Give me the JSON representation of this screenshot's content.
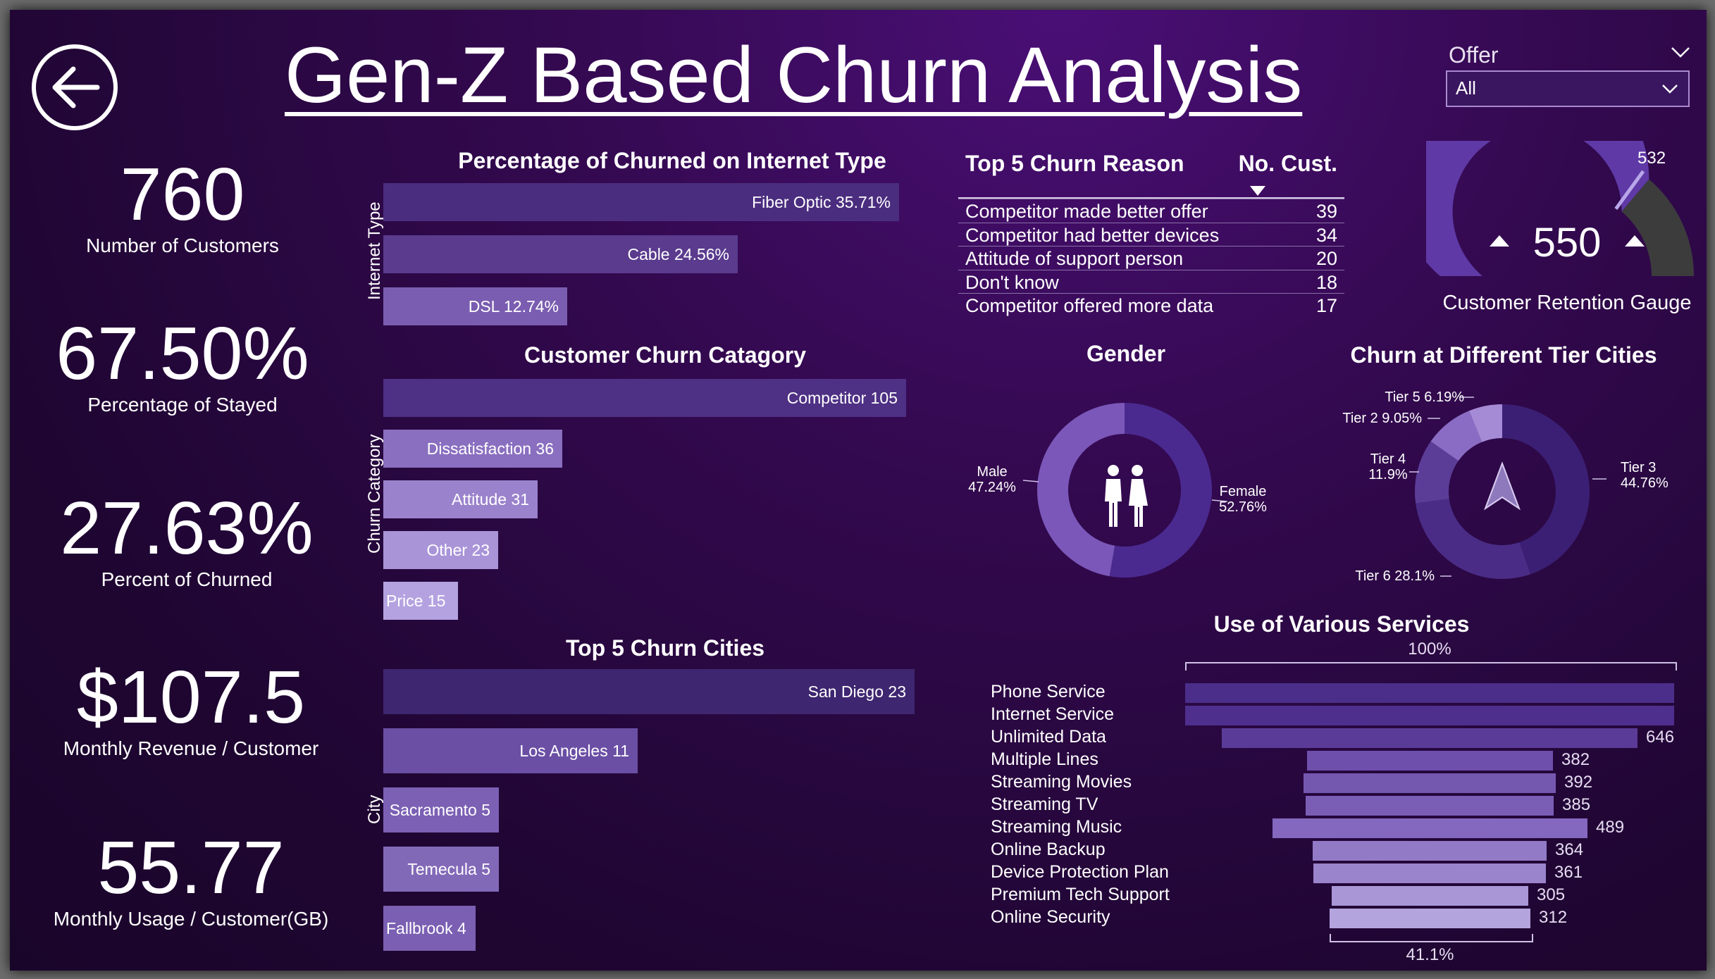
{
  "header": {
    "title": "Gen-Z Based Churn Analysis",
    "back_icon": "arrow-left-circle-icon",
    "slicer": {
      "label": "Offer",
      "value": "All"
    }
  },
  "colors": {
    "background": "#2a0744",
    "bar_dark": "#4b2d7f",
    "bar_mid": "#6b4a9e",
    "bar_light": "#9a82c4",
    "gauge_fill": "#5f39a6",
    "gauge_rest": "#3c3c3c"
  },
  "kpis": [
    {
      "value": "760",
      "label": "Number of Customers"
    },
    {
      "value": "67.50%",
      "label": "Percentage of Stayed"
    },
    {
      "value": "27.63%",
      "label": "Percent of Churned"
    },
    {
      "value": "$107.5",
      "label": "Monthly Revenue / Customer"
    },
    {
      "value": "55.77",
      "label": "Monthly Usage / Customer(GB)"
    }
  ],
  "chart_data": [
    {
      "type": "bar",
      "orientation": "horizontal",
      "title": "Percentage of Churned on Internet Type",
      "ylabel": "Internet Type",
      "categories": [
        "Fiber Optic",
        "Cable",
        "DSL"
      ],
      "values": [
        35.71,
        24.56,
        12.74
      ],
      "labels": [
        "Fiber Optic 35.71%",
        "Cable 24.56%",
        "DSL 12.74%"
      ]
    },
    {
      "type": "bar",
      "orientation": "horizontal",
      "title": "Customer Churn Catagory",
      "ylabel": "Churn Category",
      "categories": [
        "Competitor",
        "Dissatisfaction",
        "Attitude",
        "Other",
        "Price"
      ],
      "values": [
        105,
        36,
        31,
        23,
        15
      ],
      "labels": [
        "Competitor 105",
        "Dissatisfaction 36",
        "Attitude 31",
        "Other 23",
        "Price 15"
      ]
    },
    {
      "type": "bar",
      "orientation": "horizontal",
      "title": "Top 5 Churn Cities",
      "ylabel": "City",
      "categories": [
        "San Diego",
        "Los Angeles",
        "Sacramento",
        "Temecula",
        "Fallbrook"
      ],
      "values": [
        23,
        11,
        5,
        5,
        4
      ],
      "labels": [
        "San Diego 23",
        "Los Angeles 11",
        "Sacramento 5",
        "Temecula 5",
        "Fallbrook 4"
      ]
    },
    {
      "type": "table",
      "title": "Top 5 Churn Reason",
      "columns": [
        "Top 5 Churn Reason",
        "No. Cust."
      ],
      "rows": [
        [
          "Competitor made better offer",
          "39"
        ],
        [
          "Competitor had better devices",
          "34"
        ],
        [
          "Attitude of support person",
          "20"
        ],
        [
          "Don't know",
          "18"
        ],
        [
          "Competitor offered more data",
          "17"
        ]
      ]
    },
    {
      "type": "gauge",
      "title": "Customer Retention Gauge",
      "value": 550,
      "value_label": "550",
      "target": 532,
      "target_label": "532",
      "max": 760
    },
    {
      "type": "pie",
      "style": "donut",
      "title": "Gender",
      "categories": [
        "Female",
        "Male"
      ],
      "values": [
        52.76,
        47.24
      ],
      "labels": [
        [
          "Female",
          "52.76%"
        ],
        [
          "Male",
          "47.24%"
        ]
      ],
      "center_icon": "people-male-female-icon"
    },
    {
      "type": "pie",
      "style": "donut",
      "title": "Churn at Different Tier Cities",
      "categories": [
        "Tier 3",
        "Tier 6",
        "Tier 4",
        "Tier 2",
        "Tier 5"
      ],
      "values": [
        44.76,
        28.1,
        11.9,
        9.05,
        6.19
      ],
      "labels": [
        [
          "Tier 3",
          "44.76%"
        ],
        [
          "Tier 6 28.1%"
        ],
        [
          "Tier 4",
          "11.9%"
        ],
        [
          "Tier 2 9.05%"
        ],
        [
          "Tier 5 6.19%"
        ]
      ],
      "center_icon": "navigation-arrow-icon"
    },
    {
      "type": "bar",
      "style": "funnel",
      "title": "Use of Various Services",
      "categories": [
        "Phone Service",
        "Internet Service",
        "Unlimited Data",
        "Multiple Lines",
        "Streaming Movies",
        "Streaming TV",
        "Streaming Music",
        "Online Backup",
        "Device Protection Plan",
        "Premium Tech Support",
        "Online Security"
      ],
      "values": [
        760,
        760,
        646,
        382,
        392,
        385,
        489,
        364,
        361,
        305,
        312
      ],
      "value_labels": [
        "",
        "",
        "646",
        "382",
        "392",
        "385",
        "489",
        "364",
        "361",
        "305",
        "312"
      ],
      "top_annotation": "100%",
      "bottom_annotation": "41.1%"
    }
  ]
}
